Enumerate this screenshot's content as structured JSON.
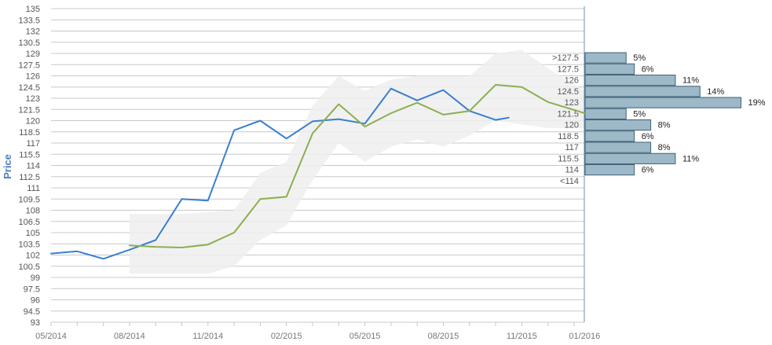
{
  "chart_data": {
    "type": "line",
    "ylabel": "Price",
    "xlabel": "",
    "ylim": [
      93,
      135
    ],
    "y_ticks": [
      "93",
      "94.5",
      "96",
      "97.5",
      "99",
      "100.5",
      "102",
      "103.5",
      "105",
      "106.5",
      "108",
      "109.5",
      "111",
      "112.5",
      "114",
      "115.5",
      "117",
      "118.5",
      "120",
      "121.5",
      "123",
      "124.5",
      "126",
      "127.5",
      "129",
      "130.5",
      "132",
      "133.5",
      "135"
    ],
    "x_ticks": [
      {
        "label": "05/2014",
        "month": 0
      },
      {
        "label": "08/2014",
        "month": 3
      },
      {
        "label": "11/2014",
        "month": 6
      },
      {
        "label": "02/2015",
        "month": 9
      },
      {
        "label": "05/2015",
        "month": 12
      },
      {
        "label": "08/2015",
        "month": 15
      },
      {
        "label": "11/2015",
        "month": 18
      },
      {
        "label": "01/2016",
        "month": 20.4
      }
    ],
    "grid": true,
    "series": [
      {
        "color": "#3a7fcf",
        "points": [
          {
            "m": 0,
            "y": 102.2
          },
          {
            "m": 1,
            "y": 102.5
          },
          {
            "m": 2,
            "y": 101.5
          },
          {
            "m": 3,
            "y": 102.7
          },
          {
            "m": 4,
            "y": 104
          },
          {
            "m": 5,
            "y": 109.5
          },
          {
            "m": 6,
            "y": 109.3
          },
          {
            "m": 7,
            "y": 118.7
          },
          {
            "m": 8,
            "y": 120
          },
          {
            "m": 9,
            "y": 117.6
          },
          {
            "m": 10,
            "y": 119.9
          },
          {
            "m": 11,
            "y": 120.2
          },
          {
            "m": 12,
            "y": 119.6
          },
          {
            "m": 13,
            "y": 124.3
          },
          {
            "m": 14,
            "y": 122.7
          },
          {
            "m": 15,
            "y": 124.1
          },
          {
            "m": 16,
            "y": 121.3
          },
          {
            "m": 17,
            "y": 120.1
          },
          {
            "m": 17.5,
            "y": 120.4
          }
        ]
      },
      {
        "color": "#8aaf50",
        "points": [
          {
            "m": 3,
            "y": 103.3
          },
          {
            "m": 4,
            "y": 103.1
          },
          {
            "m": 5,
            "y": 103
          },
          {
            "m": 6,
            "y": 103.4
          },
          {
            "m": 7,
            "y": 105
          },
          {
            "m": 8,
            "y": 109.5
          },
          {
            "m": 9,
            "y": 109.8
          },
          {
            "m": 10,
            "y": 118.3
          },
          {
            "m": 11,
            "y": 122.2
          },
          {
            "m": 12,
            "y": 119.2
          },
          {
            "m": 13,
            "y": 121
          },
          {
            "m": 14,
            "y": 122.4
          },
          {
            "m": 15,
            "y": 120.8
          },
          {
            "m": 16,
            "y": 121.3
          },
          {
            "m": 17,
            "y": 124.8
          },
          {
            "m": 18,
            "y": 124.5
          },
          {
            "m": 19,
            "y": 122.5
          },
          {
            "m": 20.4,
            "y": 121
          }
        ]
      }
    ],
    "band": {
      "color": "#eeeeee",
      "upper": [
        {
          "m": 3,
          "y": 107.5
        },
        {
          "m": 5,
          "y": 107.5
        },
        {
          "m": 7,
          "y": 108
        },
        {
          "m": 8,
          "y": 113
        },
        {
          "m": 9,
          "y": 114.5
        },
        {
          "m": 10,
          "y": 122
        },
        {
          "m": 11,
          "y": 126
        },
        {
          "m": 12,
          "y": 124
        },
        {
          "m": 13,
          "y": 125.5
        },
        {
          "m": 14,
          "y": 126
        },
        {
          "m": 15,
          "y": 126
        },
        {
          "m": 16,
          "y": 126
        },
        {
          "m": 17,
          "y": 129
        },
        {
          "m": 18,
          "y": 129.5
        },
        {
          "m": 19,
          "y": 127
        },
        {
          "m": 20.4,
          "y": 124
        }
      ],
      "lower": [
        {
          "m": 20.4,
          "y": 119
        },
        {
          "m": 19,
          "y": 119
        },
        {
          "m": 18,
          "y": 119.5
        },
        {
          "m": 17,
          "y": 120
        },
        {
          "m": 16,
          "y": 118
        },
        {
          "m": 15,
          "y": 116.5
        },
        {
          "m": 14,
          "y": 117.5
        },
        {
          "m": 13,
          "y": 116.5
        },
        {
          "m": 12,
          "y": 114.5
        },
        {
          "m": 11,
          "y": 117
        },
        {
          "m": 10,
          "y": 112
        },
        {
          "m": 9,
          "y": 106
        },
        {
          "m": 8,
          "y": 104
        },
        {
          "m": 7,
          "y": 100.5
        },
        {
          "m": 6,
          "y": 99.5
        },
        {
          "m": 3,
          "y": 99.5
        }
      ]
    },
    "distribution": {
      "color": "#9db8c7",
      "bins": [
        {
          "label": ">127.5",
          "pct": 5,
          "pct_label": "5%"
        },
        {
          "label": "127.5",
          "pct": 6,
          "pct_label": "6%"
        },
        {
          "label": "126",
          "pct": 11,
          "pct_label": "11%"
        },
        {
          "label": "124.5",
          "pct": 14,
          "pct_label": "14%"
        },
        {
          "label": "123",
          "pct": 19,
          "pct_label": "19%"
        },
        {
          "label": "121.5",
          "pct": 5,
          "pct_label": "5%"
        },
        {
          "label": "120",
          "pct": 8,
          "pct_label": "8%"
        },
        {
          "label": "118.5",
          "pct": 6,
          "pct_label": "6%"
        },
        {
          "label": "117",
          "pct": 8,
          "pct_label": "8%"
        },
        {
          "label": "115.5",
          "pct": 11,
          "pct_label": "11%"
        },
        {
          "label": "114",
          "pct": 6,
          "pct_label": "6%"
        },
        {
          "label": "<114",
          "pct": null,
          "pct_label": ""
        }
      ]
    }
  }
}
